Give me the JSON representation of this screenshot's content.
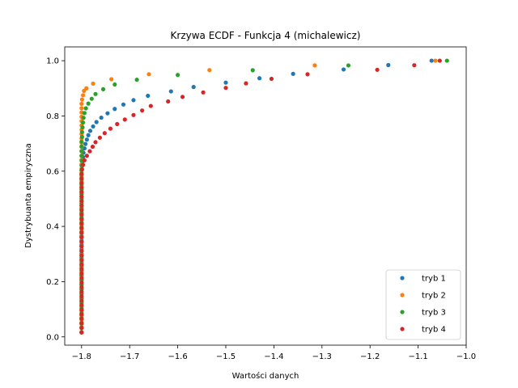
{
  "chart_data": {
    "type": "scatter",
    "title": "Krzywa ECDF - Funkcja 4 (michalewicz)",
    "xlabel": "Wartości danych",
    "ylabel": "Dystrybuanta empiryczna",
    "xlim": [
      -1.835,
      -1.0
    ],
    "ylim": [
      -0.03,
      1.05
    ],
    "x_ticks": [
      -1.8,
      -1.7,
      -1.6,
      -1.5,
      -1.4,
      -1.3,
      -1.2,
      -1.1,
      -1.0
    ],
    "x_tick_labels": [
      "−1.8",
      "−1.7",
      "−1.6",
      "−1.5",
      "−1.4",
      "−1.3",
      "−1.2",
      "−1.1",
      "−1.0"
    ],
    "y_ticks": [
      0.0,
      0.2,
      0.4,
      0.6,
      0.8,
      1.0
    ],
    "y_tick_labels": [
      "0.0",
      "0.2",
      "0.4",
      "0.6",
      "0.8",
      "1.0"
    ],
    "grid": false,
    "legend_position": "lower-right",
    "series": [
      {
        "name": "tryb 1",
        "color": "#1f77b4",
        "x": [
          -1.8,
          -1.8,
          -1.8,
          -1.8,
          -1.8,
          -1.8,
          -1.8,
          -1.8,
          -1.8,
          -1.8,
          -1.8,
          -1.8,
          -1.8,
          -1.8,
          -1.8,
          -1.8,
          -1.8,
          -1.8,
          -1.8,
          -1.8,
          -1.8,
          -1.8,
          -1.8,
          -1.8,
          -1.8,
          -1.8,
          -1.8,
          -1.8,
          -1.8,
          -1.8,
          -1.8,
          -1.8,
          -1.8,
          -1.8,
          -1.8,
          -1.8,
          -1.8,
          -1.8,
          -1.799,
          -1.798,
          -1.797,
          -1.796,
          -1.794,
          -1.792,
          -1.789,
          -1.786,
          -1.782,
          -1.776,
          -1.769,
          -1.759,
          -1.746,
          -1.731,
          -1.713,
          -1.692,
          -1.662,
          -1.614,
          -1.567,
          -1.5,
          -1.43,
          -1.36,
          -1.255,
          -1.162,
          -1.072
        ],
        "y": [
          0.0159,
          0.0317,
          0.0476,
          0.0635,
          0.0794,
          0.0952,
          0.1111,
          0.127,
          0.1429,
          0.1587,
          0.1746,
          0.1905,
          0.2063,
          0.2222,
          0.2381,
          0.254,
          0.2698,
          0.2857,
          0.3016,
          0.3175,
          0.3333,
          0.3492,
          0.3651,
          0.381,
          0.3968,
          0.4127,
          0.4286,
          0.4444,
          0.4603,
          0.4762,
          0.4921,
          0.5079,
          0.5238,
          0.5397,
          0.5556,
          0.5714,
          0.5873,
          0.6032,
          0.619,
          0.6349,
          0.6508,
          0.6667,
          0.6825,
          0.6984,
          0.7143,
          0.7302,
          0.746,
          0.7619,
          0.7778,
          0.7937,
          0.8095,
          0.8254,
          0.8413,
          0.8571,
          0.873,
          0.8889,
          0.9048,
          0.9206,
          0.9365,
          0.9524,
          0.9683,
          0.9841,
          1.0
        ]
      },
      {
        "name": "tryb 2",
        "color": "#ff7f0e",
        "x": [
          -1.8,
          -1.8,
          -1.8,
          -1.8,
          -1.8,
          -1.8,
          -1.8,
          -1.8,
          -1.8,
          -1.8,
          -1.8,
          -1.8,
          -1.8,
          -1.8,
          -1.8,
          -1.8,
          -1.8,
          -1.8,
          -1.8,
          -1.8,
          -1.8,
          -1.8,
          -1.8,
          -1.8,
          -1.8,
          -1.8,
          -1.8,
          -1.8,
          -1.8,
          -1.8,
          -1.8,
          -1.8,
          -1.8,
          -1.8,
          -1.8,
          -1.8,
          -1.8,
          -1.8,
          -1.8,
          -1.8,
          -1.8,
          -1.8,
          -1.8,
          -1.8,
          -1.8,
          -1.8,
          -1.8,
          -1.8,
          -1.8,
          -1.8,
          -1.8,
          -1.8,
          -1.8,
          -1.8,
          -1.799,
          -1.797,
          -1.795,
          -1.79,
          -1.776,
          -1.738,
          -1.66,
          -1.534,
          -1.315,
          -1.064
        ],
        "y": [
          0.0156,
          0.0313,
          0.0469,
          0.0625,
          0.0781,
          0.0938,
          0.1094,
          0.125,
          0.1406,
          0.1563,
          0.1719,
          0.1875,
          0.2031,
          0.2188,
          0.2344,
          0.25,
          0.2656,
          0.2813,
          0.2969,
          0.3125,
          0.3281,
          0.3438,
          0.3594,
          0.375,
          0.3906,
          0.4063,
          0.4219,
          0.4375,
          0.4531,
          0.4688,
          0.4844,
          0.5,
          0.5156,
          0.5313,
          0.5469,
          0.5625,
          0.5781,
          0.5938,
          0.6094,
          0.625,
          0.6406,
          0.6563,
          0.6719,
          0.6875,
          0.7031,
          0.7188,
          0.7344,
          0.75,
          0.7656,
          0.7813,
          0.7969,
          0.8125,
          0.8281,
          0.8438,
          0.8594,
          0.875,
          0.8906,
          0.9,
          0.917,
          0.933,
          0.951,
          0.966,
          0.983,
          1.0
        ]
      },
      {
        "name": "tryb 3",
        "color": "#2ca02c",
        "x": [
          -1.8,
          -1.8,
          -1.8,
          -1.8,
          -1.8,
          -1.8,
          -1.8,
          -1.8,
          -1.8,
          -1.8,
          -1.8,
          -1.8,
          -1.8,
          -1.8,
          -1.8,
          -1.8,
          -1.8,
          -1.8,
          -1.8,
          -1.8,
          -1.8,
          -1.8,
          -1.8,
          -1.8,
          -1.8,
          -1.8,
          -1.8,
          -1.8,
          -1.8,
          -1.8,
          -1.8,
          -1.8,
          -1.8,
          -1.8,
          -1.8,
          -1.8,
          -1.8,
          -1.8,
          -1.8,
          -1.8,
          -1.8,
          -1.799,
          -1.799,
          -1.798,
          -1.797,
          -1.796,
          -1.794,
          -1.791,
          -1.786,
          -1.779,
          -1.771,
          -1.755,
          -1.731,
          -1.685,
          -1.6,
          -1.444,
          -1.245,
          -1.04
        ],
        "y": [
          0.0172,
          0.0345,
          0.0517,
          0.069,
          0.0862,
          0.1034,
          0.1207,
          0.1379,
          0.1552,
          0.1724,
          0.1897,
          0.2069,
          0.2241,
          0.2414,
          0.2586,
          0.2759,
          0.2931,
          0.3103,
          0.3276,
          0.3448,
          0.3621,
          0.3793,
          0.3966,
          0.4138,
          0.431,
          0.4483,
          0.4655,
          0.4828,
          0.5,
          0.5172,
          0.5345,
          0.5517,
          0.569,
          0.5862,
          0.6034,
          0.6207,
          0.6379,
          0.6552,
          0.6724,
          0.6897,
          0.7069,
          0.7241,
          0.7414,
          0.7586,
          0.7759,
          0.7931,
          0.8103,
          0.8276,
          0.8448,
          0.8621,
          0.8793,
          0.8966,
          0.9138,
          0.931,
          0.9483,
          0.9655,
          0.9828,
          1.0
        ]
      },
      {
        "name": "tryb 4",
        "color": "#d62728",
        "x": [
          -1.8,
          -1.8,
          -1.8,
          -1.8,
          -1.8,
          -1.8,
          -1.8,
          -1.8,
          -1.8,
          -1.8,
          -1.8,
          -1.8,
          -1.8,
          -1.8,
          -1.8,
          -1.8,
          -1.8,
          -1.8,
          -1.8,
          -1.8,
          -1.8,
          -1.8,
          -1.8,
          -1.8,
          -1.8,
          -1.8,
          -1.8,
          -1.8,
          -1.8,
          -1.8,
          -1.8,
          -1.8,
          -1.8,
          -1.8,
          -1.8,
          -1.8,
          -1.799,
          -1.797,
          -1.794,
          -1.789,
          -1.783,
          -1.777,
          -1.771,
          -1.762,
          -1.752,
          -1.74,
          -1.726,
          -1.71,
          -1.692,
          -1.674,
          -1.656,
          -1.62,
          -1.59,
          -1.547,
          -1.5,
          -1.458,
          -1.405,
          -1.33,
          -1.185,
          -1.108,
          -1.055
        ],
        "y": [
          0.0164,
          0.0328,
          0.0492,
          0.0656,
          0.082,
          0.0984,
          0.1148,
          0.1311,
          0.1475,
          0.1639,
          0.1803,
          0.1967,
          0.2131,
          0.2295,
          0.2459,
          0.2623,
          0.2787,
          0.2951,
          0.3115,
          0.3279,
          0.3443,
          0.3607,
          0.377,
          0.3934,
          0.4098,
          0.4262,
          0.4426,
          0.459,
          0.4754,
          0.4918,
          0.5082,
          0.5246,
          0.541,
          0.5574,
          0.5738,
          0.5902,
          0.6066,
          0.623,
          0.6393,
          0.6557,
          0.6721,
          0.6885,
          0.7049,
          0.7213,
          0.7377,
          0.7541,
          0.7705,
          0.7869,
          0.8033,
          0.8197,
          0.8361,
          0.8525,
          0.8689,
          0.8852,
          0.9016,
          0.918,
          0.9344,
          0.9508,
          0.9672,
          0.9836,
          1.0
        ]
      }
    ]
  }
}
